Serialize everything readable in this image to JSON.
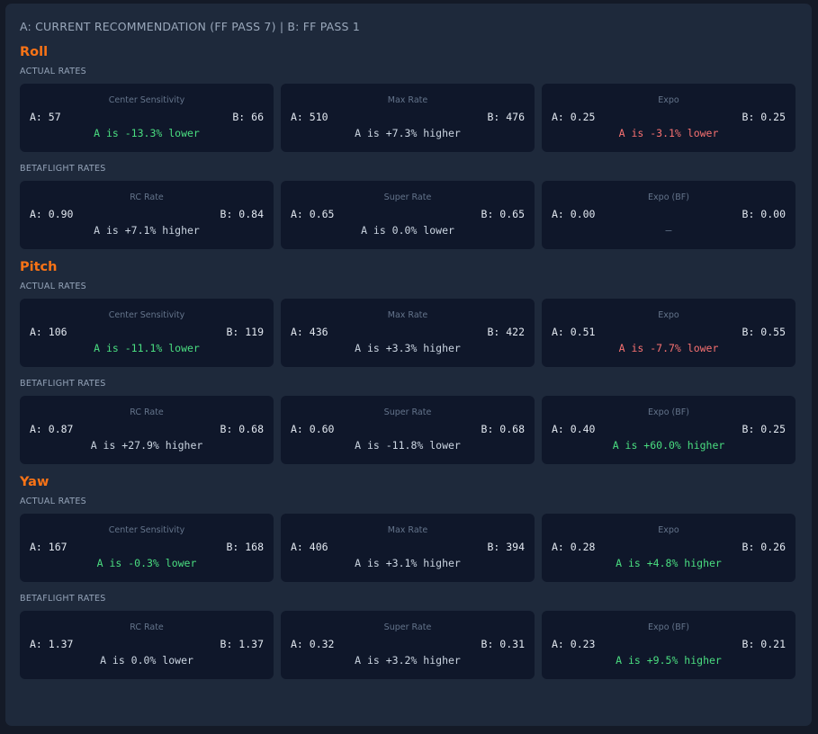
{
  "header": {
    "title": "A: CURRENT RECOMMENDATION (FF PASS 7) | B: FF PASS 1"
  },
  "colors": {
    "accent": "#f97316",
    "good": "#4ade80",
    "bad": "#f87171",
    "neutral": "#cbd5e1"
  },
  "axes": [
    {
      "name": "Roll",
      "groups": [
        {
          "label": "ACTUAL RATES",
          "cards": [
            {
              "name": "Center Sensitivity",
              "a": "A: 57",
              "b": "B: 66",
              "delta": "A is -13.3% lower",
              "tone": "good"
            },
            {
              "name": "Max Rate",
              "a": "A: 510",
              "b": "B: 476",
              "delta": "A is +7.3% higher",
              "tone": "neutral"
            },
            {
              "name": "Expo",
              "a": "A: 0.25",
              "b": "B: 0.25",
              "delta": "A is -3.1% lower",
              "tone": "bad"
            }
          ]
        },
        {
          "label": "BETAFLIGHT RATES",
          "cards": [
            {
              "name": "RC Rate",
              "a": "A: 0.90",
              "b": "B: 0.84",
              "delta": "A is +7.1% higher",
              "tone": "neutral"
            },
            {
              "name": "Super Rate",
              "a": "A: 0.65",
              "b": "B: 0.65",
              "delta": "A is 0.0% lower",
              "tone": "neutral"
            },
            {
              "name": "Expo (BF)",
              "a": "A: 0.00",
              "b": "B: 0.00",
              "delta": "—",
              "tone": "none"
            }
          ]
        }
      ]
    },
    {
      "name": "Pitch",
      "groups": [
        {
          "label": "ACTUAL RATES",
          "cards": [
            {
              "name": "Center Sensitivity",
              "a": "A: 106",
              "b": "B: 119",
              "delta": "A is -11.1% lower",
              "tone": "good"
            },
            {
              "name": "Max Rate",
              "a": "A: 436",
              "b": "B: 422",
              "delta": "A is +3.3% higher",
              "tone": "neutral"
            },
            {
              "name": "Expo",
              "a": "A: 0.51",
              "b": "B: 0.55",
              "delta": "A is -7.7% lower",
              "tone": "bad"
            }
          ]
        },
        {
          "label": "BETAFLIGHT RATES",
          "cards": [
            {
              "name": "RC Rate",
              "a": "A: 0.87",
              "b": "B: 0.68",
              "delta": "A is +27.9% higher",
              "tone": "neutral"
            },
            {
              "name": "Super Rate",
              "a": "A: 0.60",
              "b": "B: 0.68",
              "delta": "A is -11.8% lower",
              "tone": "neutral"
            },
            {
              "name": "Expo (BF)",
              "a": "A: 0.40",
              "b": "B: 0.25",
              "delta": "A is +60.0% higher",
              "tone": "good"
            }
          ]
        }
      ]
    },
    {
      "name": "Yaw",
      "groups": [
        {
          "label": "ACTUAL RATES",
          "cards": [
            {
              "name": "Center Sensitivity",
              "a": "A: 167",
              "b": "B: 168",
              "delta": "A is -0.3% lower",
              "tone": "good"
            },
            {
              "name": "Max Rate",
              "a": "A: 406",
              "b": "B: 394",
              "delta": "A is +3.1% higher",
              "tone": "neutral"
            },
            {
              "name": "Expo",
              "a": "A: 0.28",
              "b": "B: 0.26",
              "delta": "A is +4.8% higher",
              "tone": "good"
            }
          ]
        },
        {
          "label": "BETAFLIGHT RATES",
          "cards": [
            {
              "name": "RC Rate",
              "a": "A: 1.37",
              "b": "B: 1.37",
              "delta": "A is 0.0% lower",
              "tone": "neutral"
            },
            {
              "name": "Super Rate",
              "a": "A: 0.32",
              "b": "B: 0.31",
              "delta": "A is +3.2% higher",
              "tone": "neutral"
            },
            {
              "name": "Expo (BF)",
              "a": "A: 0.23",
              "b": "B: 0.21",
              "delta": "A is +9.5% higher",
              "tone": "good"
            }
          ]
        }
      ]
    }
  ]
}
